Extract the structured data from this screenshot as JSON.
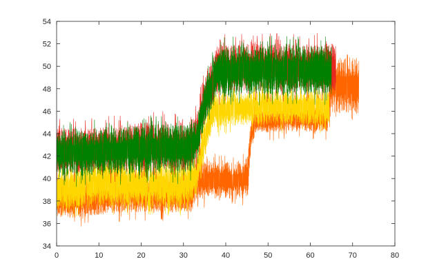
{
  "chart_data": {
    "type": "line",
    "title": "",
    "xlabel": "",
    "ylabel": "",
    "xlim": [
      0,
      80
    ],
    "ylim": [
      34,
      54
    ],
    "x_ticks": [
      0,
      10,
      20,
      30,
      40,
      50,
      60,
      70,
      80
    ],
    "y_ticks": [
      34,
      36,
      38,
      40,
      42,
      44,
      46,
      48,
      50,
      52,
      54
    ],
    "grid": false,
    "legend": "none",
    "series": [
      {
        "color": "#ff6600",
        "x_end": 71.5,
        "envelope": [
          [
            0,
            36.5,
            39.5
          ],
          [
            5,
            36.5,
            39.5
          ],
          [
            10,
            36.8,
            39.8
          ],
          [
            20,
            37.0,
            40.0
          ],
          [
            30,
            37.0,
            40.0
          ],
          [
            32,
            37.0,
            40.0
          ],
          [
            33,
            38.2,
            41.5
          ],
          [
            40,
            38.2,
            41.5
          ],
          [
            44,
            38.2,
            41.5
          ],
          [
            45.2,
            38.5,
            42.0
          ],
          [
            46,
            42.5,
            45.5
          ],
          [
            47,
            44.0,
            46.0
          ],
          [
            55,
            44.2,
            46.3
          ],
          [
            64,
            44.2,
            46.3
          ],
          [
            65,
            45.8,
            50.8
          ],
          [
            71.5,
            45.8,
            50.8
          ]
        ],
        "noise_amp": 0.8
      },
      {
        "color": "#ffd700",
        "x_end": 64.5,
        "envelope": [
          [
            0,
            37.2,
            41.0
          ],
          [
            10,
            37.5,
            41.5
          ],
          [
            20,
            37.5,
            41.5
          ],
          [
            31,
            37.5,
            41.5
          ],
          [
            33,
            38.5,
            42.0
          ],
          [
            35,
            42.0,
            45.5
          ],
          [
            37,
            44.5,
            47.5
          ],
          [
            45,
            44.8,
            47.8
          ],
          [
            64.5,
            44.8,
            47.8
          ]
        ],
        "noise_amp": 0.8
      },
      {
        "color": "#e6261f",
        "x_end": 66,
        "envelope": [
          [
            0,
            40.5,
            44.5
          ],
          [
            10,
            40.5,
            44.5
          ],
          [
            20,
            40.8,
            45.0
          ],
          [
            31,
            40.8,
            45.0
          ],
          [
            33,
            41.5,
            45.5
          ],
          [
            35,
            45.0,
            49.0
          ],
          [
            38,
            47.5,
            51.8
          ],
          [
            45,
            47.8,
            52.0
          ],
          [
            66,
            47.8,
            52.0
          ]
        ],
        "noise_amp": 1.0
      },
      {
        "color": "#008000",
        "x_end": 65,
        "envelope": [
          [
            0,
            40.2,
            44.2
          ],
          [
            10,
            40.3,
            44.3
          ],
          [
            20,
            40.5,
            44.8
          ],
          [
            31,
            40.5,
            44.8
          ],
          [
            33,
            41.3,
            45.3
          ],
          [
            35,
            44.8,
            48.5
          ],
          [
            38,
            47.2,
            51.5
          ],
          [
            45,
            47.5,
            51.8
          ],
          [
            65,
            47.5,
            51.8
          ]
        ],
        "noise_amp": 1.0
      }
    ]
  }
}
